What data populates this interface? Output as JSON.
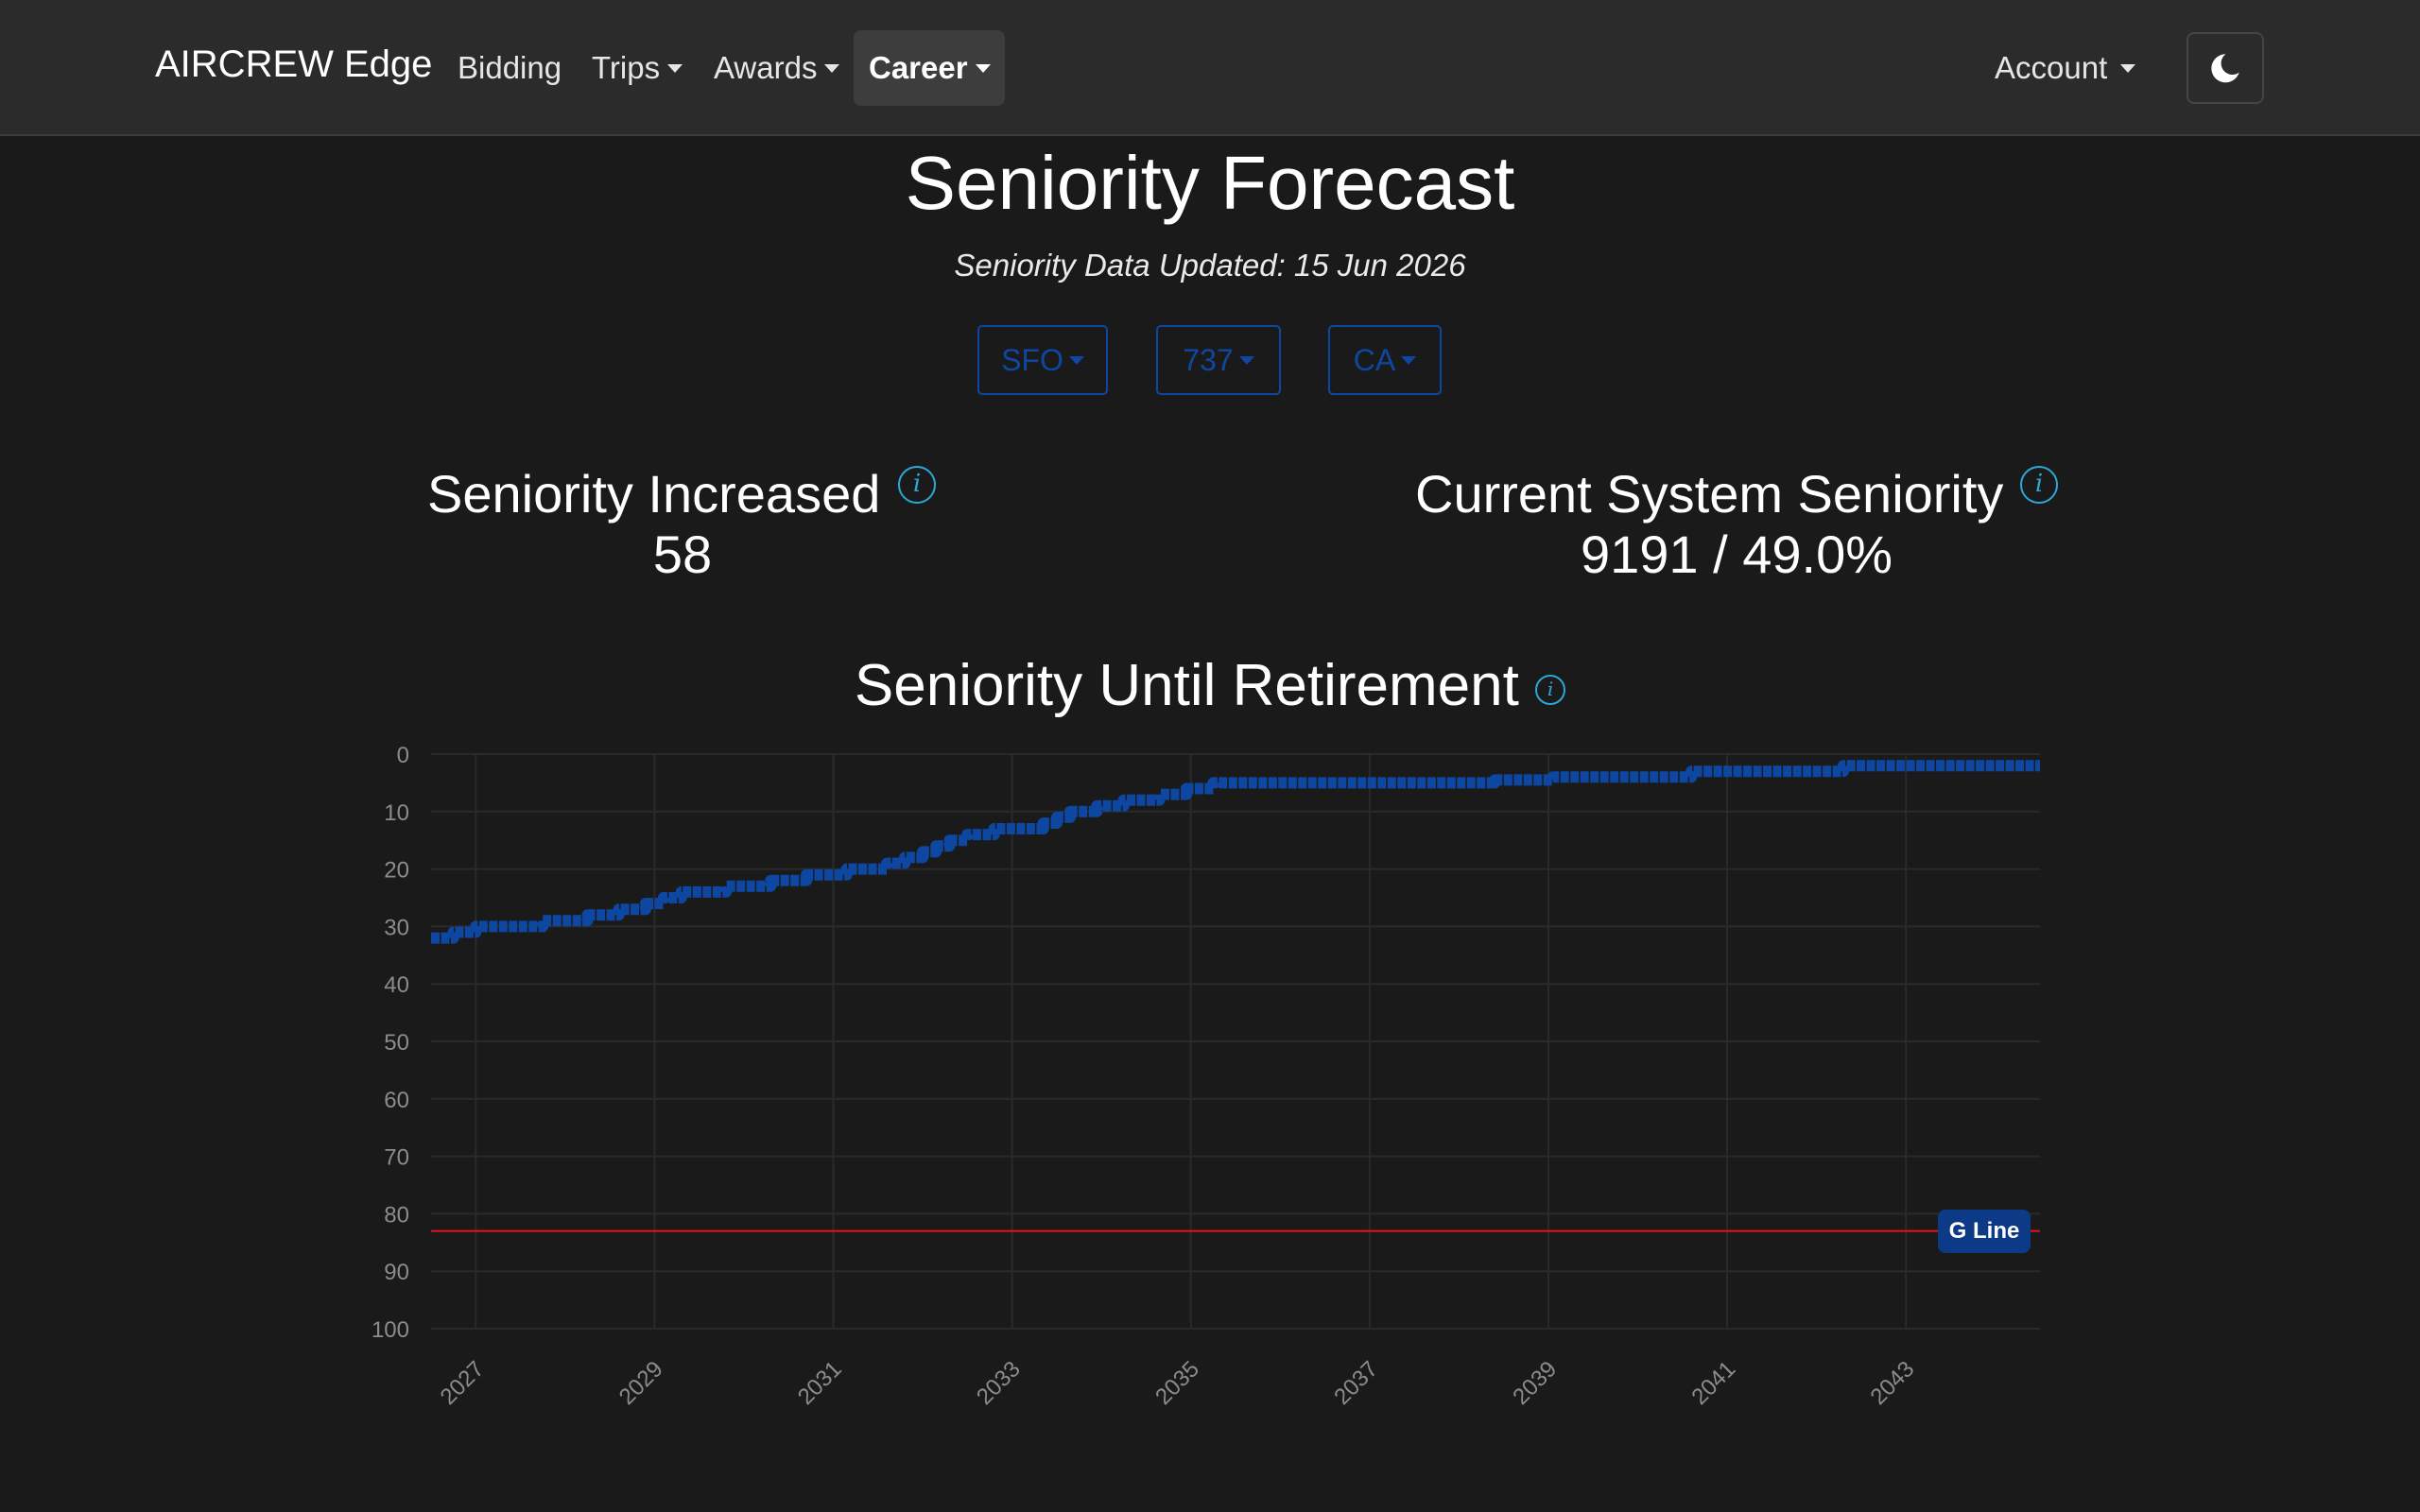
{
  "navbar": {
    "brand": "AIRCREW Edge",
    "items": [
      {
        "label": "Bidding",
        "dropdown": false,
        "active": false
      },
      {
        "label": "Trips",
        "dropdown": true,
        "active": false
      },
      {
        "label": "Awards",
        "dropdown": true,
        "active": false
      },
      {
        "label": "Career",
        "dropdown": true,
        "active": true
      }
    ],
    "account_label": "Account",
    "theme_icon": "moon-icon"
  },
  "header": {
    "title": "Seniority Forecast",
    "subtitle": "Seniority Data Updated: 15 Jun 2026"
  },
  "filters": {
    "base": "SFO",
    "equipment": "737",
    "seat": "CA"
  },
  "stats": {
    "increased_label": "Seniority Increased",
    "increased_value": "58",
    "current_label": "Current System Seniority",
    "current_value": "9191 / 49.0%"
  },
  "chart_title": "Seniority Until Retirement",
  "chart_data": {
    "type": "line",
    "y_reversed": true,
    "ylim": [
      0,
      100
    ],
    "y_ticks": [
      0,
      10,
      20,
      30,
      40,
      50,
      60,
      70,
      80,
      90,
      100
    ],
    "xlim": [
      2026.5,
      2044.5
    ],
    "x_ticks": [
      "2027",
      "2029",
      "2031",
      "2033",
      "2035",
      "2037",
      "2039",
      "2041",
      "2043"
    ],
    "grid": true,
    "series": [
      {
        "color": "#0d47a1",
        "x": [
          2026.5,
          2026.75,
          2026.75,
          2027.0,
          2027.0,
          2027.75,
          2027.75,
          2028.25,
          2028.25,
          2028.6,
          2028.6,
          2028.9,
          2028.9,
          2029.1,
          2029.1,
          2029.3,
          2029.3,
          2029.8,
          2029.8,
          2030.3,
          2030.3,
          2030.7,
          2030.7,
          2031.15,
          2031.15,
          2031.6,
          2031.6,
          2031.8,
          2031.8,
          2032.0,
          2032.0,
          2032.15,
          2032.15,
          2032.3,
          2032.3,
          2032.5,
          2032.5,
          2032.8,
          2032.8,
          2033.35,
          2033.35,
          2033.5,
          2033.5,
          2033.65,
          2033.65,
          2033.95,
          2033.95,
          2034.25,
          2034.25,
          2034.65,
          2034.65,
          2034.95,
          2034.95,
          2035.25,
          2035.25,
          2035.55,
          2035.55,
          2038.4,
          2038.4,
          2039.05,
          2039.05,
          2040.6,
          2040.6,
          2042.3,
          2042.3,
          2044.5
        ],
        "y": [
          32,
          32,
          31,
          31,
          30,
          30,
          29,
          29,
          28,
          28,
          27,
          27,
          26,
          26,
          25,
          25,
          24,
          24,
          23,
          23,
          22,
          22,
          21,
          21,
          20,
          20,
          19,
          19,
          18,
          18,
          17,
          17,
          16,
          16,
          15,
          15,
          14,
          14,
          13,
          13,
          12,
          12,
          11,
          11,
          10,
          10,
          9,
          9,
          8,
          8,
          7,
          7,
          6,
          6,
          5,
          5,
          5,
          5,
          4.5,
          4.5,
          4,
          4,
          3,
          3,
          2,
          2
        ]
      }
    ],
    "reference_line": {
      "y": 83,
      "label": "G Line",
      "color": "#e3141b"
    }
  }
}
